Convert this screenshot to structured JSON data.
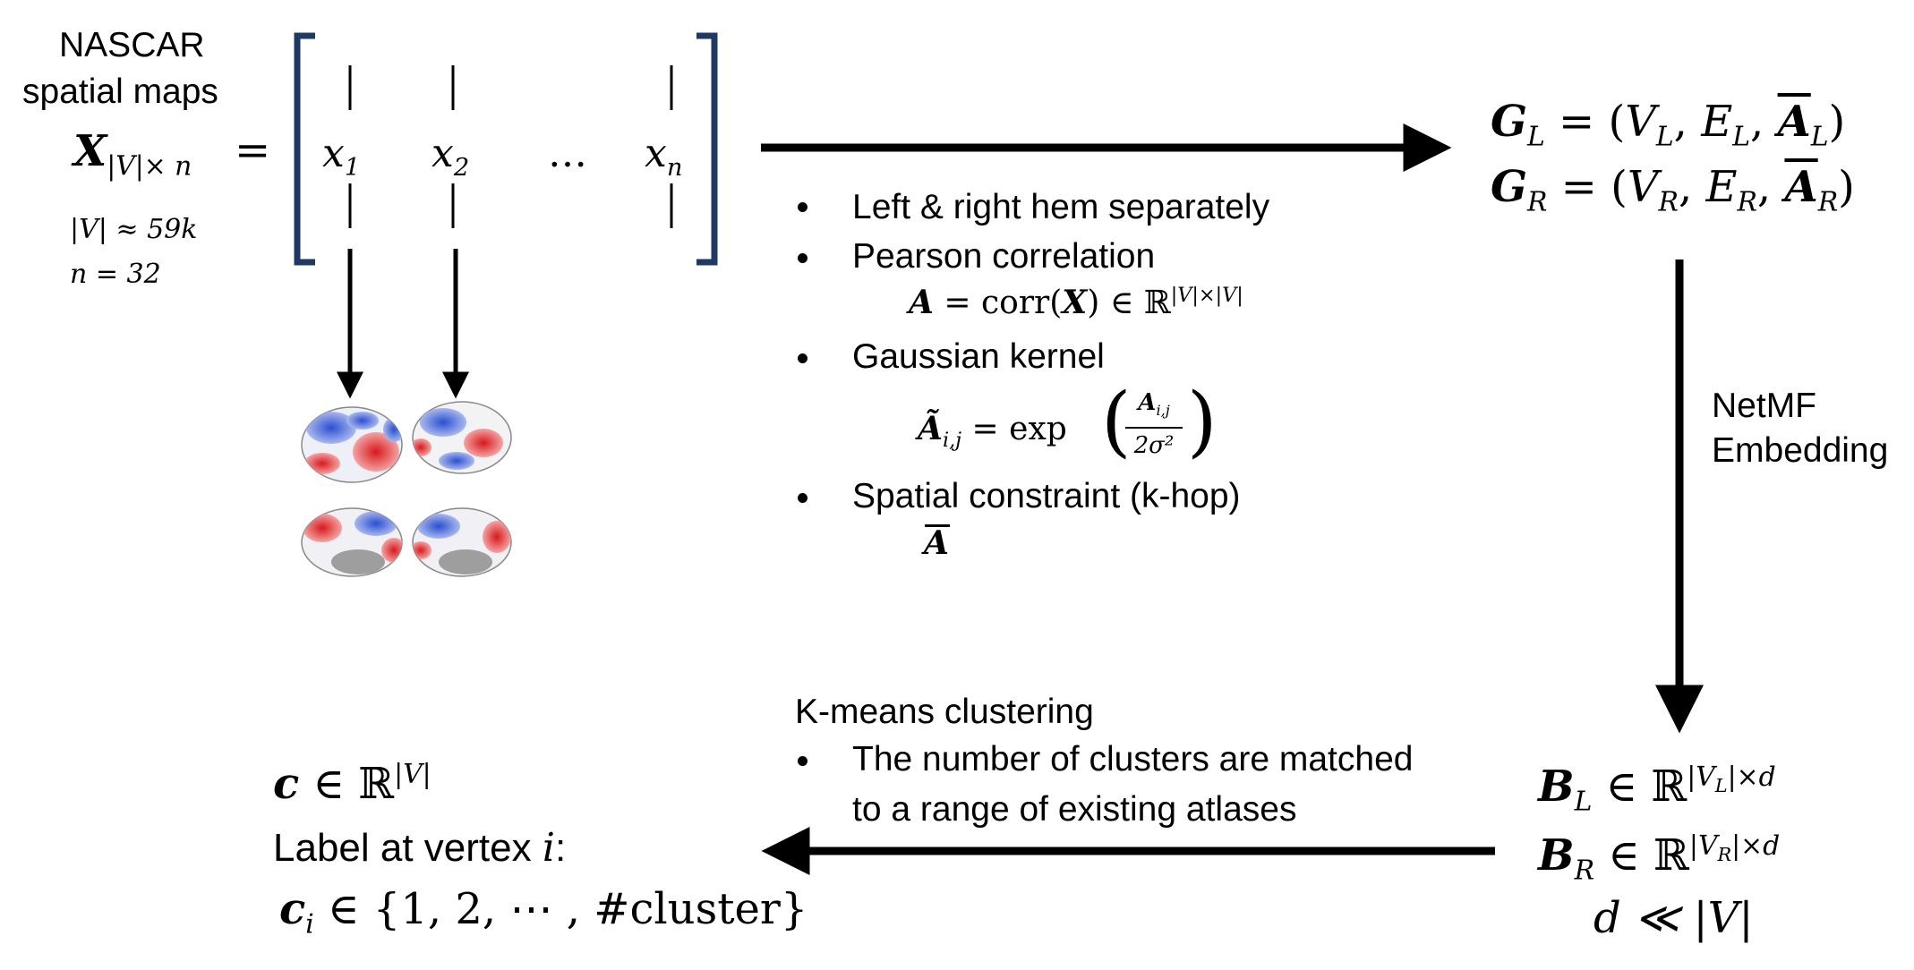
{
  "input": {
    "title_line1": "NASCAR",
    "title_line2": "spatial maps",
    "matrix_lhs": "X",
    "matrix_sub": "|V|× n",
    "equals": "=",
    "columns": [
      "x",
      "x",
      "…",
      "x"
    ],
    "column_subs": [
      "1",
      "2",
      "",
      "n"
    ],
    "vertex_count": "|V| ≈ 59k",
    "map_count": "n = 32"
  },
  "graph_construction": {
    "bullets": [
      "Left & right hem separately",
      "Pearson correlation",
      "Gaussian kernel",
      "Spatial constraint (k-hop)"
    ],
    "corr_lhs": "A",
    "corr_rhs": " = corr(",
    "corr_arg": "X",
    "corr_tail": ") ∈ ℝ",
    "corr_sup": "|V|×|V|",
    "kernel_lhs": "Ã",
    "kernel_sub": "i,j",
    "kernel_mid": " = exp",
    "kernel_num": "A",
    "kernel_num_sub": "i,j",
    "kernel_den": "2σ²",
    "constraint_symbol": "A"
  },
  "graphs": {
    "left": {
      "G": "G",
      "sub": "L",
      "eq": " = (",
      "V": "V",
      "E": "E",
      "A": "A",
      "close": ")"
    },
    "right": {
      "G": "G",
      "sub": "R",
      "eq": " = (",
      "V": "V",
      "E": "E",
      "A": "A",
      "close": ")"
    }
  },
  "embedding": {
    "label_line1": "NetMF",
    "label_line2": "Embedding",
    "bl": "B",
    "bl_sub": "L",
    "br": "B",
    "br_sub": "R",
    "in_r": " ∈ ℝ",
    "bl_sup_pre": "|V",
    "bl_sup_sub": "L",
    "bl_sup_post": "|×d",
    "br_sup_pre": "|V",
    "br_sup_sub": "R",
    "br_sup_post": "|×d",
    "dim_relation": "d ≪ |V|"
  },
  "clustering": {
    "title": "K-means clustering",
    "bullet_line1": "The number of clusters are matched",
    "bullet_line2": "to a range of existing atlases"
  },
  "output": {
    "c": "c",
    "c_in": " ∈ ℝ",
    "c_sup": "|V|",
    "label_text": "Label at vertex ",
    "label_var": "i",
    "label_colon": ":",
    "ci": "c",
    "ci_sub": "i",
    "ci_set": " ∈ {1, 2, ⋯ , #cluster}"
  },
  "colors": {
    "ink": "#000000",
    "bracket": "#1f3864",
    "brain_red": "#d7191c",
    "brain_blue": "#3a5fcd",
    "brain_white": "#f2f2f2",
    "brain_gray": "#9e9e9e"
  }
}
